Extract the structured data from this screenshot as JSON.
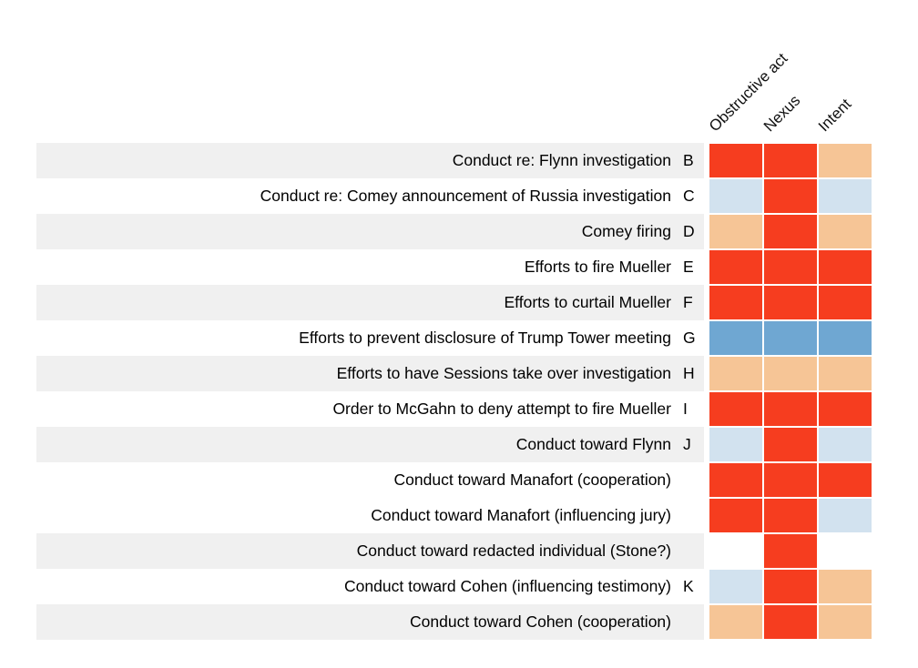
{
  "chart_data": {
    "type": "heatmap",
    "columns": [
      "Obstructive act",
      "Nexus",
      "Intent"
    ],
    "palette": {
      "red": "#f63d1f",
      "orange": "#f6c596",
      "light_blue": "#d2e2ef",
      "blue": "#6fa7d2",
      "white": "#ffffff",
      "row_shade": "#f0f0f0"
    },
    "rows": [
      {
        "label": "Conduct re: Flynn investigation",
        "letter": "B",
        "shaded": true,
        "cells": [
          "red",
          "red",
          "orange"
        ]
      },
      {
        "label": "Conduct re: Comey announcement of Russia investigation",
        "letter": "C",
        "shaded": false,
        "cells": [
          "light_blue",
          "red",
          "light_blue"
        ]
      },
      {
        "label": "Comey firing",
        "letter": "D",
        "shaded": true,
        "cells": [
          "orange",
          "red",
          "orange"
        ]
      },
      {
        "label": "Efforts to fire Mueller",
        "letter": "E",
        "shaded": false,
        "cells": [
          "red",
          "red",
          "red"
        ]
      },
      {
        "label": "Efforts to curtail Mueller",
        "letter": "F",
        "shaded": true,
        "cells": [
          "red",
          "red",
          "red"
        ]
      },
      {
        "label": "Efforts to prevent disclosure of Trump Tower meeting",
        "letter": "G",
        "shaded": false,
        "cells": [
          "blue",
          "blue",
          "blue"
        ]
      },
      {
        "label": "Efforts to have Sessions take over investigation",
        "letter": "H",
        "shaded": true,
        "cells": [
          "orange",
          "orange",
          "orange"
        ]
      },
      {
        "label": "Order to McGahn to deny attempt to fire Mueller",
        "letter": "I",
        "shaded": false,
        "cells": [
          "red",
          "red",
          "red"
        ]
      },
      {
        "label": "Conduct toward Flynn",
        "letter": "J",
        "shaded": true,
        "cells": [
          "light_blue",
          "red",
          "light_blue"
        ]
      },
      {
        "label": "Conduct toward Manafort (cooperation)",
        "letter": "",
        "shaded": false,
        "cells": [
          "red",
          "red",
          "red"
        ]
      },
      {
        "label": "Conduct toward Manafort (influencing jury)",
        "letter": "",
        "shaded": false,
        "cells": [
          "red",
          "red",
          "light_blue"
        ]
      },
      {
        "label": "Conduct toward redacted individual (Stone?)",
        "letter": "",
        "shaded": true,
        "cells": [
          "white",
          "red",
          "white"
        ]
      },
      {
        "label": "Conduct toward Cohen (influencing testimony)",
        "letter": "K",
        "shaded": false,
        "cells": [
          "light_blue",
          "red",
          "orange"
        ]
      },
      {
        "label": "Conduct toward Cohen (cooperation)",
        "letter": "",
        "shaded": true,
        "cells": [
          "orange",
          "red",
          "orange"
        ]
      }
    ]
  }
}
